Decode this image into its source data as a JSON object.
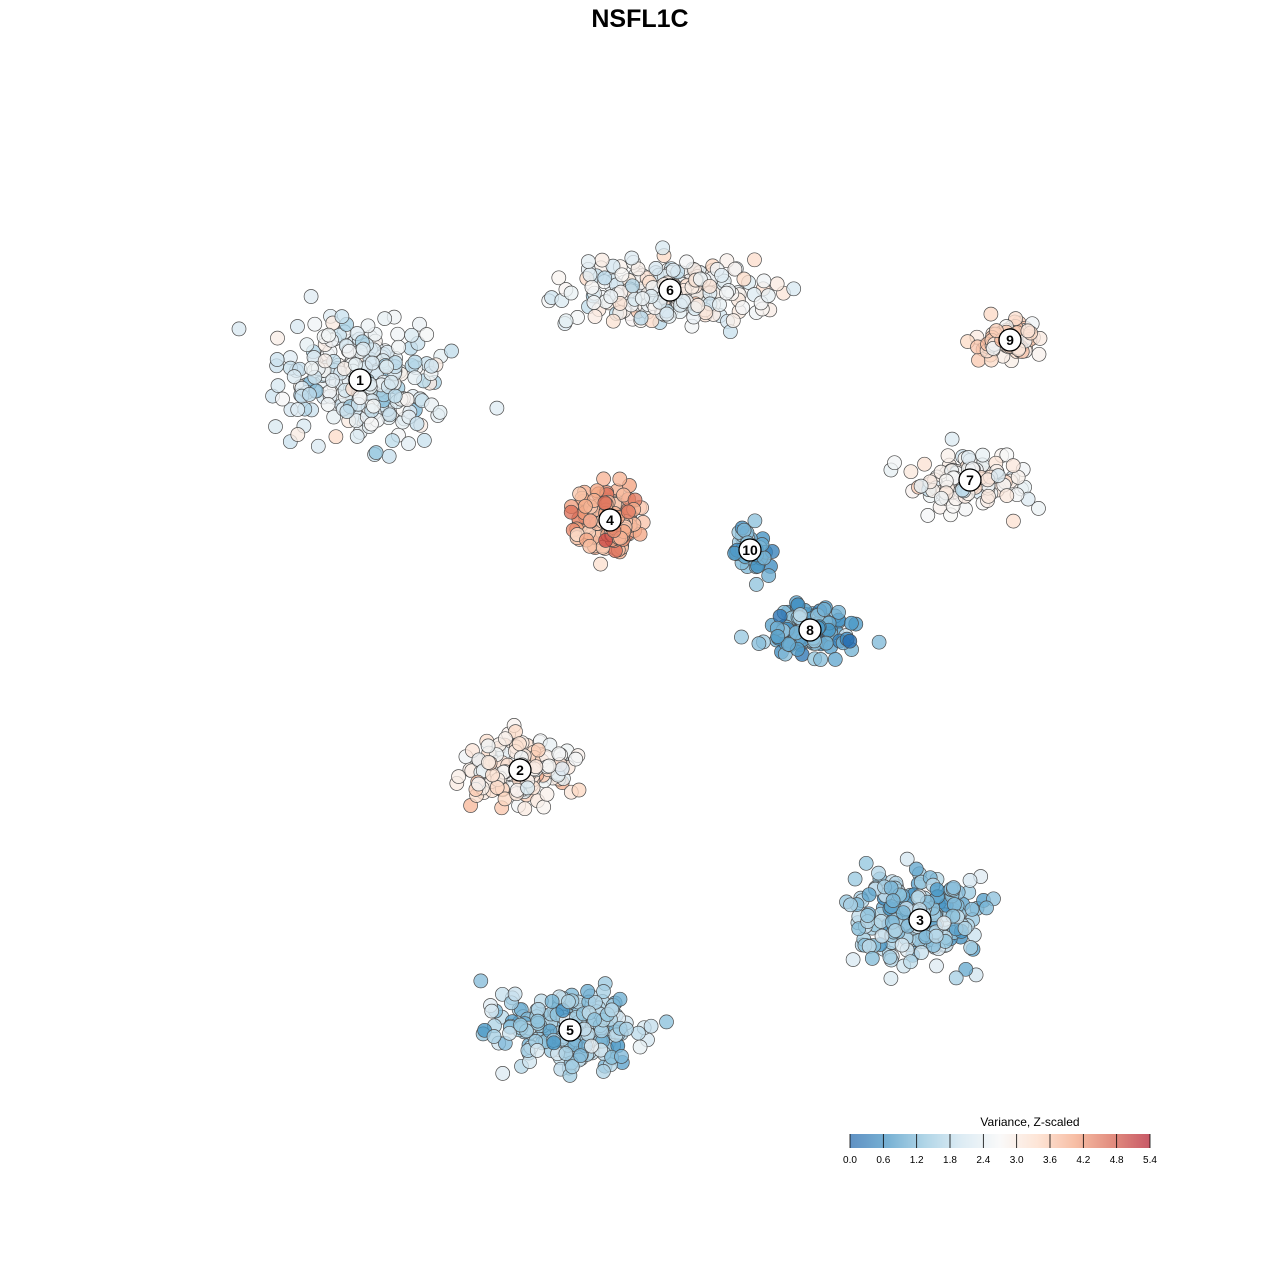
{
  "chart_data": {
    "type": "scatter",
    "title": "NSFL1C",
    "xlabel": "",
    "ylabel": "",
    "grid": false,
    "axes_visible": false,
    "legend": {
      "title": "Variance, Z-scaled",
      "ticks": [
        "0.0",
        "0.6",
        "1.2",
        "1.8",
        "2.4",
        "3.0",
        "3.6",
        "4.2",
        "4.8",
        "5.4"
      ],
      "range": [
        0,
        5.4
      ],
      "placement": "bottom-right",
      "palette": [
        "#2166ac",
        "#4393c3",
        "#92c5de",
        "#d1e5f0",
        "#f7f7f7",
        "#fddbc7",
        "#f4a582",
        "#d6604d",
        "#b2182b"
      ]
    },
    "clusters": [
      {
        "label": "1",
        "x": -28,
        "y": 26,
        "mean": 2.3
      },
      {
        "label": "2",
        "x": -12,
        "y": -13,
        "mean": 3.0
      },
      {
        "label": "3",
        "x": 28,
        "y": -28,
        "mean": 1.5
      },
      {
        "label": "4",
        "x": -3,
        "y": 12,
        "mean": 3.9
      },
      {
        "label": "5",
        "x": -7,
        "y": -39,
        "mean": 1.6
      },
      {
        "label": "6",
        "x": 3,
        "y": 35,
        "mean": 2.6
      },
      {
        "label": "7",
        "x": 33,
        "y": 16,
        "mean": 2.8
      },
      {
        "label": "8",
        "x": 17,
        "y": 1,
        "mean": 1.0
      },
      {
        "label": "9",
        "x": 37,
        "y": 30,
        "mean": 3.3
      },
      {
        "label": "10",
        "x": 11,
        "y": 9,
        "mean": 1.1
      }
    ]
  }
}
